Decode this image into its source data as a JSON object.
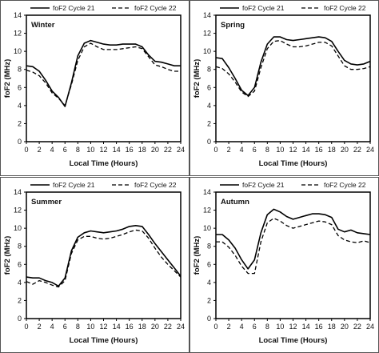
{
  "chart_data": [
    {
      "type": "line",
      "panel_label": "Winter",
      "xlabel": "Local Time (Hours)",
      "ylabel": "foF2 (MHz)",
      "xlim": [
        0,
        24
      ],
      "ylim": [
        0,
        14
      ],
      "xticks": [
        "0",
        "2",
        "4",
        "6",
        "8",
        "10",
        "12",
        "14",
        "16",
        "18",
        "20",
        "22",
        "24"
      ],
      "yticks": [
        "0",
        "2",
        "4",
        "6",
        "8",
        "10",
        "12",
        "14"
      ],
      "legend_position": "top",
      "x": [
        0,
        1,
        2,
        3,
        4,
        5,
        6,
        7,
        8,
        9,
        10,
        11,
        12,
        13,
        14,
        15,
        16,
        17,
        18,
        19,
        20,
        21,
        22,
        23,
        24
      ],
      "series": [
        {
          "name": "foF2 Cycle 21",
          "style": "solid",
          "values": [
            8.4,
            8.3,
            7.8,
            6.8,
            5.6,
            4.9,
            3.9,
            6.5,
            9.5,
            10.9,
            11.2,
            11.0,
            10.8,
            10.7,
            10.7,
            10.8,
            10.8,
            10.8,
            10.5,
            9.6,
            8.9,
            8.8,
            8.6,
            8.4,
            8.4
          ]
        },
        {
          "name": "foF2 Cycle 22",
          "style": "dashed",
          "values": [
            7.9,
            7.7,
            7.3,
            6.5,
            5.4,
            4.8,
            4.0,
            6.3,
            9.0,
            10.5,
            10.9,
            10.5,
            10.2,
            10.2,
            10.2,
            10.3,
            10.4,
            10.5,
            10.3,
            9.4,
            8.5,
            8.3,
            8.0,
            7.8,
            7.8
          ]
        }
      ]
    },
    {
      "type": "line",
      "panel_label": "Spring",
      "xlabel": "Local Time (Hours)",
      "ylabel": "foF2 (MHz)",
      "xlim": [
        0,
        24
      ],
      "ylim": [
        0,
        14
      ],
      "xticks": [
        "0",
        "2",
        "4",
        "6",
        "8",
        "10",
        "12",
        "14",
        "16",
        "18",
        "20",
        "22",
        "24"
      ],
      "yticks": [
        "0",
        "2",
        "4",
        "6",
        "8",
        "10",
        "12",
        "14"
      ],
      "legend_position": "top",
      "x": [
        0,
        1,
        2,
        3,
        4,
        5,
        6,
        7,
        8,
        9,
        10,
        11,
        12,
        13,
        14,
        15,
        16,
        17,
        18,
        19,
        20,
        21,
        22,
        23,
        24
      ],
      "series": [
        {
          "name": "foF2 Cycle 21",
          "style": "solid",
          "values": [
            9.3,
            9.2,
            8.2,
            7.0,
            5.7,
            5.1,
            6.0,
            8.8,
            10.8,
            11.6,
            11.6,
            11.3,
            11.2,
            11.3,
            11.4,
            11.5,
            11.6,
            11.5,
            11.1,
            10.0,
            9.0,
            8.6,
            8.5,
            8.6,
            8.9
          ]
        },
        {
          "name": "foF2 Cycle 22",
          "style": "dashed",
          "values": [
            8.3,
            8.1,
            7.5,
            6.6,
            5.5,
            5.0,
            5.6,
            8.2,
            10.3,
            11.1,
            11.2,
            10.8,
            10.5,
            10.5,
            10.6,
            10.8,
            11.0,
            11.0,
            10.6,
            9.5,
            8.4,
            8.0,
            8.0,
            8.1,
            8.3
          ]
        }
      ]
    },
    {
      "type": "line",
      "panel_label": "Summer",
      "xlabel": "Local Time (Hours)",
      "ylabel": "foF2 (MHz)",
      "xlim": [
        0,
        24
      ],
      "ylim": [
        0,
        14
      ],
      "xticks": [
        "0",
        "2",
        "4",
        "6",
        "8",
        "10",
        "12",
        "14",
        "16",
        "18",
        "20",
        "22",
        "24"
      ],
      "yticks": [
        "0",
        "2",
        "4",
        "6",
        "8",
        "10",
        "12",
        "14"
      ],
      "legend_position": "top",
      "x": [
        0,
        1,
        2,
        3,
        4,
        5,
        6,
        7,
        8,
        9,
        10,
        11,
        12,
        13,
        14,
        15,
        16,
        17,
        18,
        19,
        20,
        21,
        22,
        23,
        24
      ],
      "series": [
        {
          "name": "foF2 Cycle 21",
          "style": "solid",
          "values": [
            4.6,
            4.5,
            4.5,
            4.2,
            4.0,
            3.6,
            4.5,
            7.5,
            9.0,
            9.5,
            9.7,
            9.6,
            9.5,
            9.6,
            9.7,
            9.9,
            10.2,
            10.3,
            10.2,
            9.3,
            8.3,
            7.4,
            6.5,
            5.6,
            4.7
          ]
        },
        {
          "name": "foF2 Cycle 22",
          "style": "dashed",
          "values": [
            4.1,
            3.8,
            4.2,
            4.0,
            3.7,
            3.5,
            4.2,
            7.2,
            8.7,
            9.1,
            9.1,
            8.9,
            8.8,
            8.9,
            9.1,
            9.3,
            9.6,
            9.8,
            9.7,
            8.9,
            7.8,
            6.8,
            6.0,
            5.3,
            4.6
          ]
        }
      ]
    },
    {
      "type": "line",
      "panel_label": "Autumn",
      "xlabel": "Local Time (Hours)",
      "ylabel": "foF2 (MHz)",
      "xlim": [
        0,
        24
      ],
      "ylim": [
        0,
        14
      ],
      "xticks": [
        "0",
        "2",
        "4",
        "6",
        "8",
        "10",
        "12",
        "14",
        "16",
        "18",
        "20",
        "22",
        "24"
      ],
      "yticks": [
        "0",
        "2",
        "4",
        "6",
        "8",
        "10",
        "12",
        "14"
      ],
      "legend_position": "top",
      "x": [
        0,
        1,
        2,
        3,
        4,
        5,
        6,
        7,
        8,
        9,
        10,
        11,
        12,
        13,
        14,
        15,
        16,
        17,
        18,
        19,
        20,
        21,
        22,
        23,
        24
      ],
      "series": [
        {
          "name": "foF2 Cycle 21",
          "style": "solid",
          "values": [
            9.3,
            9.3,
            8.7,
            7.8,
            6.5,
            5.5,
            6.5,
            9.5,
            11.5,
            12.1,
            11.8,
            11.3,
            11.0,
            11.2,
            11.4,
            11.6,
            11.6,
            11.5,
            11.2,
            9.9,
            9.6,
            9.8,
            9.5,
            9.4,
            9.3
          ]
        },
        {
          "name": "foF2 Cycle 22",
          "style": "dashed",
          "values": [
            8.5,
            8.5,
            7.9,
            7.0,
            5.8,
            5.0,
            5.0,
            8.5,
            10.6,
            11.1,
            10.8,
            10.3,
            10.0,
            10.2,
            10.4,
            10.6,
            10.8,
            10.7,
            10.4,
            9.2,
            8.7,
            8.5,
            8.4,
            8.6,
            8.4
          ]
        }
      ]
    }
  ]
}
